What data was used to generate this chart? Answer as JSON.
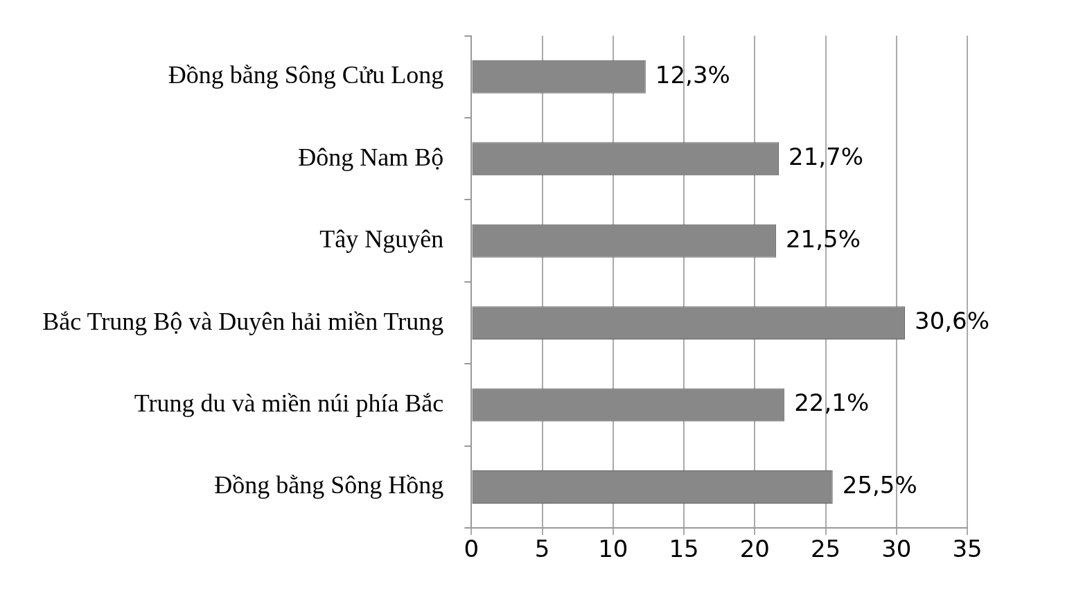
{
  "chart_data": {
    "type": "bar",
    "orientation": "horizontal",
    "categories": [
      "Đồng bằng Sông Cửu Long",
      "Đông Nam Bộ",
      "Tây Nguyên",
      "Bắc Trung Bộ và Duyên hải miền Trung",
      "Trung du và miền núi phía Bắc",
      "Đồng bằng Sông Hồng"
    ],
    "values": [
      12.3,
      21.7,
      21.5,
      30.6,
      22.1,
      25.5
    ],
    "value_labels": [
      "12,3%",
      "21,7%",
      "21,5%",
      "30,6%",
      "22,1%",
      "25,5%"
    ],
    "color": "#888888",
    "xlim": [
      0,
      35
    ],
    "xticks": [
      0,
      5,
      10,
      15,
      20,
      25,
      30,
      35
    ],
    "grid": "x"
  }
}
